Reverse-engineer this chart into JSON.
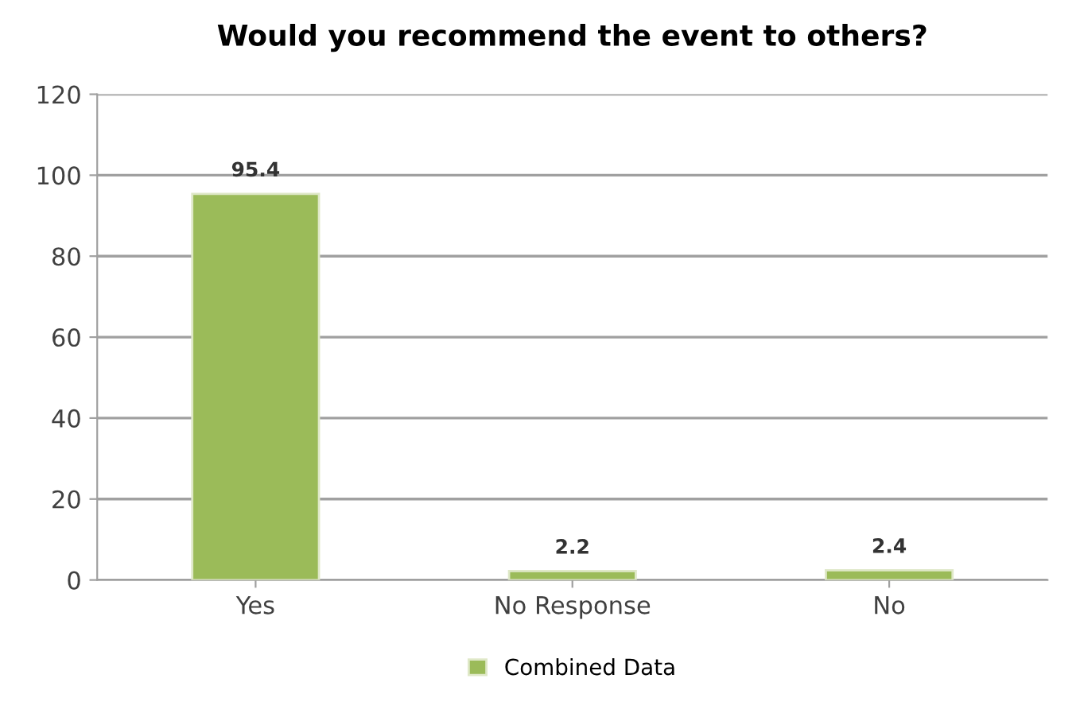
{
  "chart_data": {
    "type": "bar",
    "title": "Would you recommend the event to others?",
    "categories": [
      "Yes",
      "No Response",
      "No"
    ],
    "series": [
      {
        "name": "Combined Data",
        "color": "#9bbb59",
        "values": [
          95.4,
          2.2,
          2.4
        ]
      }
    ],
    "ylim": [
      0,
      120
    ],
    "yticks": [
      0,
      20,
      40,
      60,
      80,
      100,
      120
    ],
    "grid": "y",
    "legend": "bottom",
    "data_labels": true
  }
}
